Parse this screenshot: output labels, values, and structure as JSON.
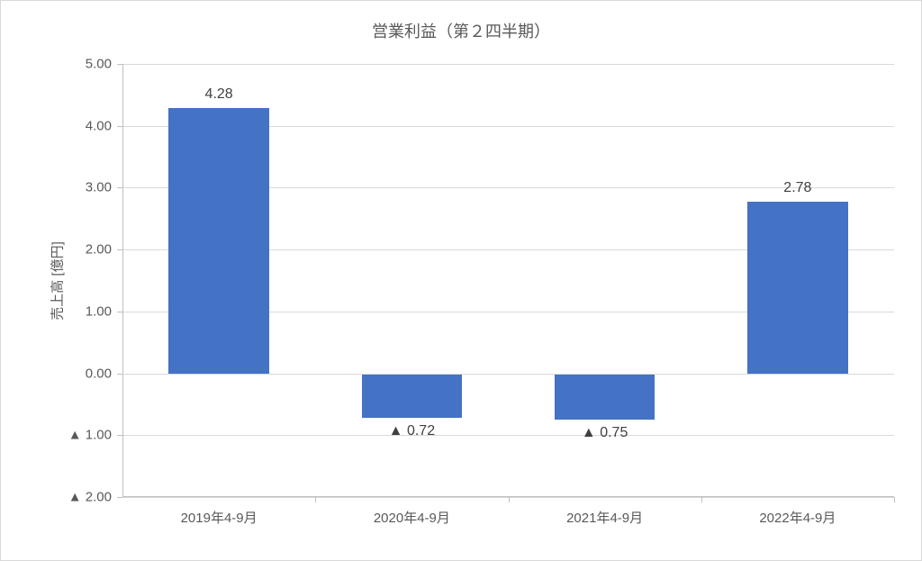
{
  "chart": {
    "type": "bar",
    "title": "営業利益（第２四半期）",
    "title_fontsize": 18,
    "y_axis_title": "売上高 [億円]",
    "categories": [
      "2019年4-9月",
      "2020年4-9月",
      "2021年4-9月",
      "2022年4-9月"
    ],
    "values": [
      4.28,
      -0.72,
      -0.75,
      2.78
    ],
    "data_labels": [
      "4.28",
      "▲ 0.72",
      "▲ 0.75",
      "2.78"
    ],
    "bar_color": "#4472c4",
    "ylim_min": -2.0,
    "ylim_max": 5.0,
    "ytick_step": 1.0,
    "ytick_labels": [
      "▲ 2.00",
      "▲ 1.00",
      "0.00",
      "1.00",
      "2.00",
      "3.00",
      "4.00",
      "5.00"
    ],
    "ytick_values": [
      -2.0,
      -1.0,
      0.0,
      1.0,
      2.0,
      3.0,
      4.0,
      5.0
    ],
    "background_color": "#ffffff",
    "grid_color": "#d9d9d9",
    "axis_color": "#bfbfbf",
    "text_color": "#595959",
    "label_fontsize": 15,
    "data_label_fontsize": 16,
    "bar_width_ratio": 0.52
  }
}
